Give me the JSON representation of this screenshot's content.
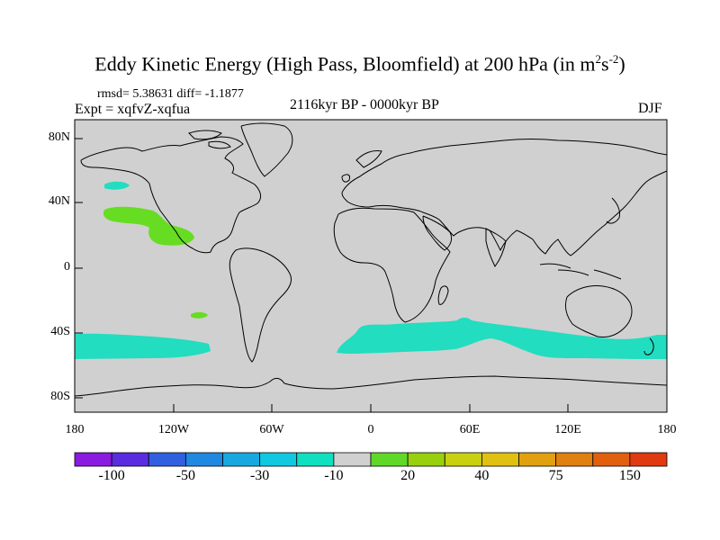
{
  "title": {
    "main": "Eddy Kinetic Energy (High Pass, Bloomfield) at 200 hPa (in m",
    "sup1": "2",
    "mid": "s",
    "sup2": "-2",
    "close": ")"
  },
  "stats": "rmsd= 5.38631 diff= -1.1877",
  "experiment": "Expt = xqfvZ-xqfua",
  "period": "2116kyr BP - 0000kyr BP",
  "season": "DJF",
  "map": {
    "ocean_land_color": "#d0d0d0",
    "coast_color": "#000000",
    "lat_labels": [
      "80N",
      "40N",
      "0",
      "40S",
      "80S"
    ],
    "lon_labels": [
      "180",
      "120W",
      "60W",
      "0",
      "60E",
      "120E",
      "180"
    ]
  },
  "colorbar": {
    "colors": [
      "#8a1be0",
      "#5a2ce0",
      "#3060e0",
      "#1f88e0",
      "#18a8e0",
      "#10c8e0",
      "#10dfc0",
      "#d0d0d0",
      "#60d828",
      "#98d010",
      "#c8d010",
      "#e0c010",
      "#e0a010",
      "#e08010",
      "#e06010",
      "#e03a10"
    ],
    "labels": [
      "-100",
      "-50",
      "-30",
      "-10",
      "20",
      "40",
      "75",
      "150"
    ]
  },
  "anomalies": {
    "positive_color": "#66dd22",
    "negative_color": "#22ddc0"
  }
}
